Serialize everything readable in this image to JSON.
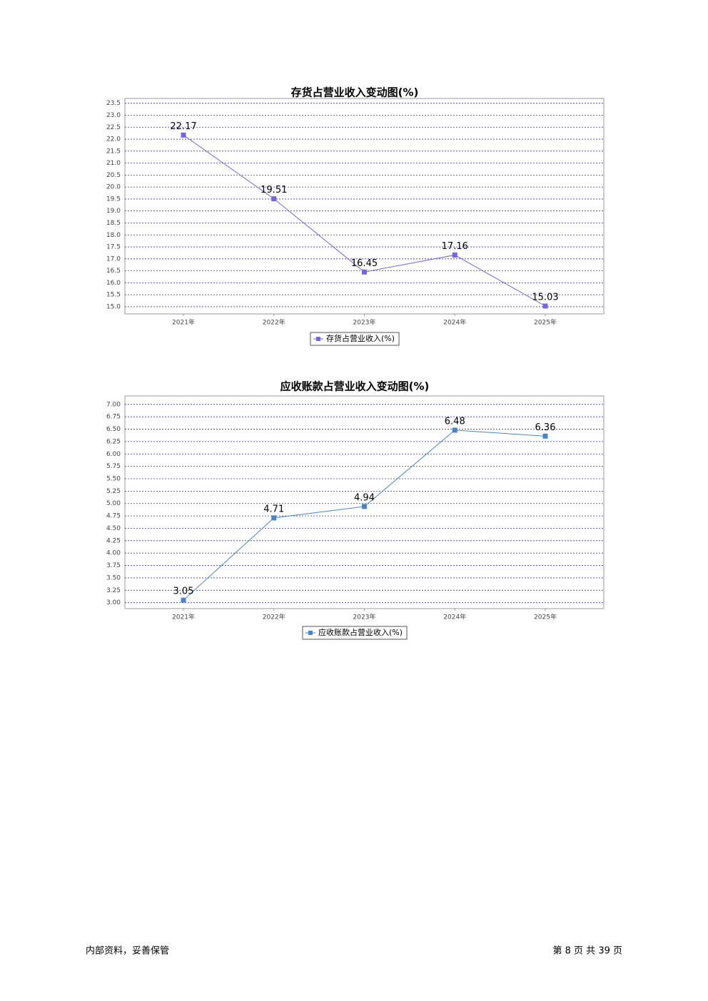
{
  "chart_data": [
    {
      "type": "line",
      "title": "存货占营业收入变动图(%)",
      "categories": [
        "2021年",
        "2022年",
        "2023年",
        "2024年",
        "2025年"
      ],
      "series": [
        {
          "name": "存货占营业收入(%)",
          "color": "#7466e3",
          "values": [
            22.17,
            19.51,
            16.45,
            17.16,
            15.03
          ]
        }
      ],
      "ylim": [
        14.7,
        23.7
      ],
      "yticks": [
        {
          "value": 15,
          "label": "15.0"
        },
        15.5,
        {
          "value": 16,
          "label": "16.0"
        },
        16.5,
        {
          "value": 17,
          "label": "17.0"
        },
        17.5,
        {
          "value": 18,
          "label": "18.0"
        },
        18.5,
        {
          "value": 19,
          "label": "19.0"
        },
        19.5,
        {
          "value": 20,
          "label": "20.0"
        },
        20.5,
        {
          "value": 21,
          "label": "21.0"
        },
        21.5,
        {
          "value": 22,
          "label": "22.0"
        },
        22.5,
        {
          "value": 23,
          "label": "23.0"
        },
        23.5
      ],
      "grid": true
    },
    {
      "type": "line",
      "title": "应收账款占营业收入变动图(%)",
      "categories": [
        "2021年",
        "2022年",
        "2023年",
        "2024年",
        "2025年"
      ],
      "series": [
        {
          "name": "应收账款占营业收入(%)",
          "color": "#4a84c6",
          "values": [
            3.05,
            4.71,
            4.94,
            6.48,
            6.36
          ]
        }
      ],
      "ylim": [
        2.88,
        7.17
      ],
      "yticks": [
        {
          "value": 3,
          "label": "3.00"
        },
        3.25,
        {
          "value": 3.5,
          "label": "3.50"
        },
        3.75,
        {
          "value": 4,
          "label": "4.00"
        },
        4.25,
        {
          "value": 4.5,
          "label": "4.50"
        },
        4.75,
        {
          "value": 5,
          "label": "5.00"
        },
        5.25,
        {
          "value": 5.5,
          "label": "5.50"
        },
        5.75,
        {
          "value": 6,
          "label": "6.00"
        },
        6.25,
        {
          "value": 6.5,
          "label": "6.50"
        },
        6.75,
        {
          "value": 7,
          "label": "7.00"
        }
      ],
      "grid": true
    }
  ],
  "footer": {
    "left": "内部资料，妥善保管",
    "right": "第 8 页 共 39 页"
  }
}
